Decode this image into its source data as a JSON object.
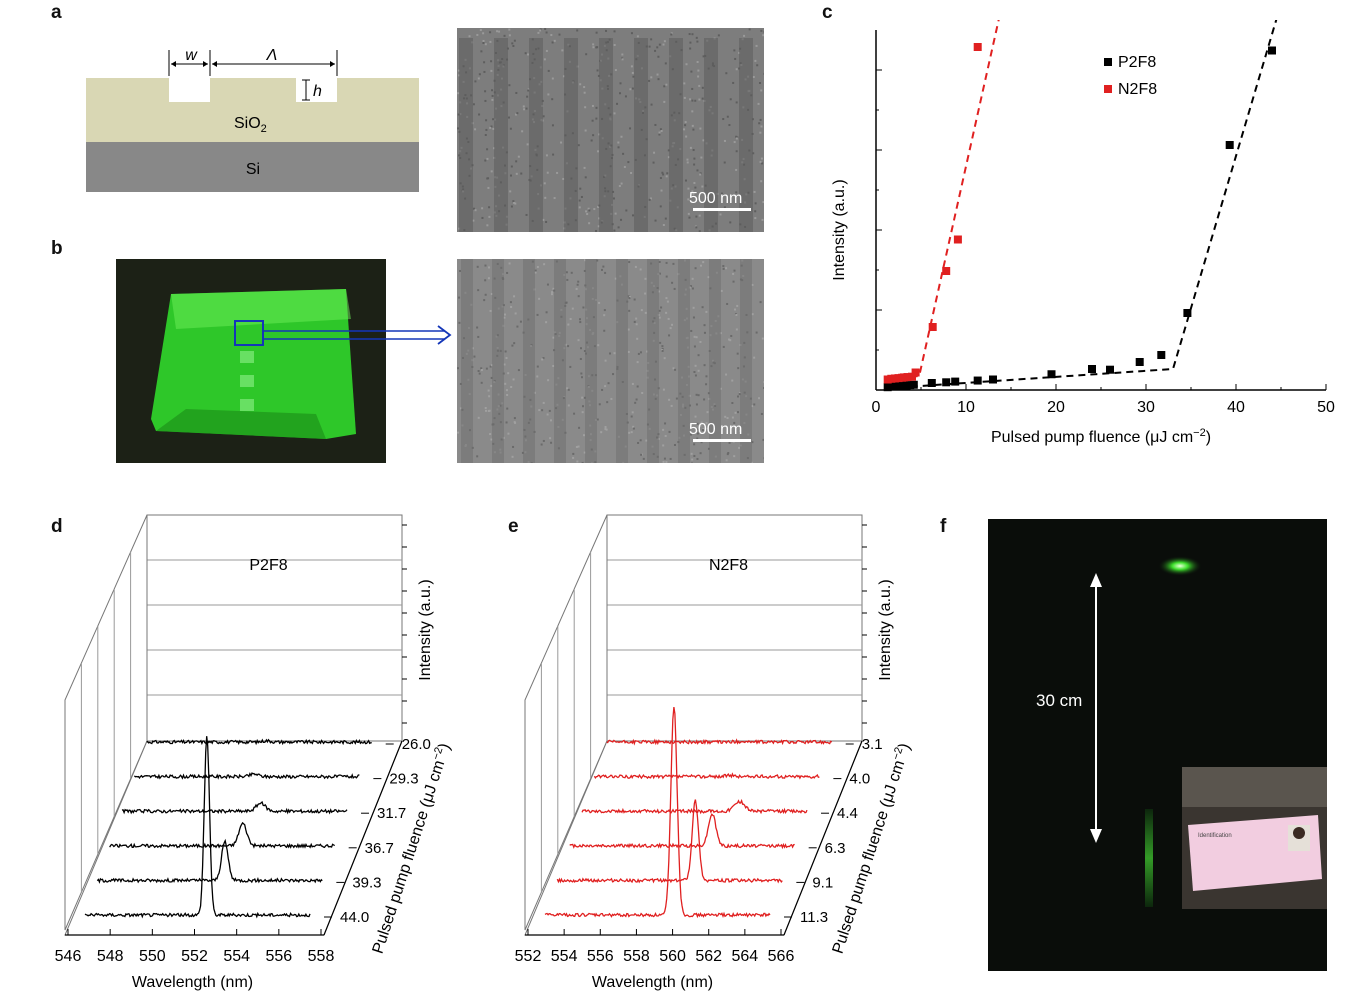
{
  "panels": {
    "a": "a",
    "b": "b",
    "c": "c",
    "d": "d",
    "e": "e",
    "f": "f"
  },
  "schematic": {
    "w_label": "w",
    "lambda_label": "Λ",
    "h_label": "h",
    "sio2_label": "SiO",
    "sio2_sub": "2",
    "si_label": "Si",
    "colors": {
      "sio2": "#d9d7b4",
      "si": "#888888"
    }
  },
  "scalebars": {
    "a": "500 nm",
    "b": "500 nm"
  },
  "photo_f": {
    "distance_label": "30 cm",
    "card_text": "Identification"
  },
  "chart_data": [
    {
      "panel": "c",
      "type": "scatter",
      "xlabel": "Pulsed pump fluence (μJ cm",
      "xlabel_sup": "−2",
      "xlabel_end": ")",
      "ylabel": "Intensity (a.u.)",
      "xlim": [
        0,
        50
      ],
      "ylim": [
        0,
        1
      ],
      "xticks": [
        "0",
        "10",
        "20",
        "30",
        "40",
        "50"
      ],
      "legend_position": "top-right",
      "series": [
        {
          "name": "P2F8",
          "color": "#000000",
          "x": [
            1.3,
            1.8,
            2.2,
            2.6,
            3.0,
            3.4,
            3.8,
            4.2,
            6.2,
            7.8,
            8.8,
            11.3,
            13.0,
            19.5,
            24.0,
            26.0,
            29.3,
            31.7,
            34.6,
            39.3,
            44.0
          ],
          "y": [
            0.008,
            0.01,
            0.012,
            0.011,
            0.013,
            0.012,
            0.014,
            0.015,
            0.02,
            0.022,
            0.024,
            0.027,
            0.03,
            0.045,
            0.06,
            0.058,
            0.08,
            0.1,
            0.22,
            0.7,
            0.97
          ]
        },
        {
          "name": "N2F8",
          "color": "#e02020",
          "x": [
            1.3,
            1.7,
            2.1,
            2.5,
            2.9,
            3.1,
            3.5,
            4.0,
            4.4,
            6.3,
            7.8,
            9.1,
            11.3
          ],
          "y": [
            0.03,
            0.032,
            0.033,
            0.034,
            0.035,
            0.036,
            0.037,
            0.038,
            0.05,
            0.18,
            0.34,
            0.43,
            0.98
          ]
        }
      ]
    },
    {
      "panel": "d",
      "type": "line",
      "title": "P2F8",
      "xlabel": "Wavelength (nm)",
      "ylabel": "Intensity (a.u.)",
      "zlabel": "Pulsed pump fluence (μJ cm",
      "zlabel_sup": "−2",
      "zlabel_end": ")",
      "xlim": [
        546,
        558
      ],
      "xticks": [
        "546",
        "548",
        "550",
        "552",
        "554",
        "556",
        "558"
      ],
      "fluences": [
        "26.0",
        "29.3",
        "31.7",
        "36.7",
        "39.3",
        "44.0"
      ],
      "peaks": [
        {
          "center": 552.4,
          "height": 0.04,
          "width": 0.3
        },
        {
          "center": 552.4,
          "height": 0.08,
          "width": 0.3
        },
        {
          "center": 553.4,
          "height": 0.25,
          "width": 0.35
        },
        {
          "center": 553.1,
          "height": 0.7,
          "width": 0.3
        },
        {
          "center": 552.8,
          "height": 1.2,
          "width": 0.25
        },
        {
          "center": 552.5,
          "height": 5.6,
          "width": 0.2
        }
      ],
      "line_color": "#000000"
    },
    {
      "panel": "e",
      "type": "line",
      "title": "N2F8",
      "xlabel": "Wavelength (nm)",
      "ylabel": "Intensity (a.u.)",
      "zlabel": "Pulsed pump fluence (μJ cm",
      "zlabel_sup": "−2",
      "zlabel_end": ")",
      "xlim": [
        551,
        566
      ],
      "xticks": [
        "552",
        "554",
        "556",
        "558",
        "560",
        "562",
        "564",
        "566"
      ],
      "fluences": [
        "3.1",
        "4.0",
        "4.4",
        "6.3",
        "9.1",
        "11.3"
      ],
      "peaks": [
        {
          "center": 560.0,
          "height": 0.02,
          "width": 0.4
        },
        {
          "center": 560.0,
          "height": 0.04,
          "width": 0.4
        },
        {
          "center": 561.5,
          "height": 0.3,
          "width": 0.5
        },
        {
          "center": 560.5,
          "height": 1.0,
          "width": 0.35
        },
        {
          "center": 560.2,
          "height": 2.5,
          "width": 0.3
        },
        {
          "center": 559.6,
          "height": 6.5,
          "width": 0.3
        }
      ],
      "line_color": "#e02020"
    }
  ]
}
